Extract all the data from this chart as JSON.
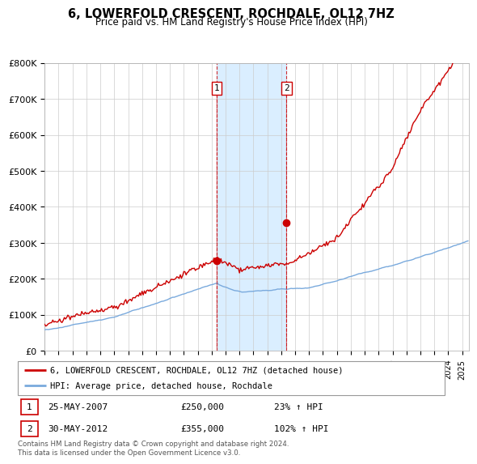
{
  "title": "6, LOWERFOLD CRESCENT, ROCHDALE, OL12 7HZ",
  "subtitle": "Price paid vs. HM Land Registry's House Price Index (HPI)",
  "red_label": "6, LOWERFOLD CRESCENT, ROCHDALE, OL12 7HZ (detached house)",
  "blue_label": "HPI: Average price, detached house, Rochdale",
  "transaction1": {
    "label": "1",
    "date": "25-MAY-2007",
    "price": "£250,000",
    "hpi": "23% ↑ HPI",
    "year": 2007.38
  },
  "transaction2": {
    "label": "2",
    "date": "30-MAY-2012",
    "price": "£355,000",
    "hpi": "102% ↑ HPI",
    "year": 2012.38
  },
  "transaction1_value": 250000,
  "transaction2_value": 355000,
  "footer": "Contains HM Land Registry data © Crown copyright and database right 2024.\nThis data is licensed under the Open Government Licence v3.0.",
  "ylim": [
    0,
    800000
  ],
  "yticks": [
    0,
    100000,
    200000,
    300000,
    400000,
    500000,
    600000,
    700000,
    800000
  ],
  "ytick_labels": [
    "£0",
    "£100K",
    "£200K",
    "£300K",
    "£400K",
    "£500K",
    "£600K",
    "£700K",
    "£800K"
  ],
  "shade_color": "#daeeff",
  "red_color": "#cc0000",
  "blue_color": "#7aaadd",
  "background_color": "#ffffff",
  "grid_color": "#cccccc",
  "dashed_line_color": "#cc0000"
}
